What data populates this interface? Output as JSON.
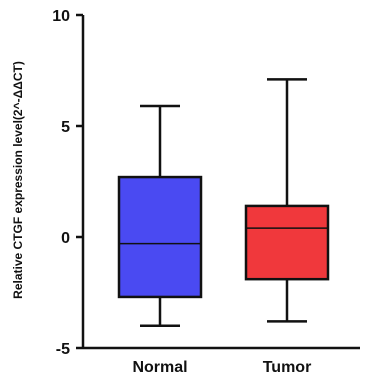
{
  "chart_data": {
    "type": "box",
    "title": "",
    "xlabel": "",
    "ylabel": "Relative CTGF expression level(2^-ΔΔCT)",
    "ylim": [
      -5,
      10
    ],
    "yticks": [
      "10",
      "5",
      "0",
      "-5"
    ],
    "grid": false,
    "categories": [
      "Normal",
      "Tumor"
    ],
    "series": [
      {
        "category": "Normal",
        "color": "#4A4AF2",
        "min": -4.0,
        "q1": -2.7,
        "median": -0.3,
        "q3": 2.7,
        "max": 5.9
      },
      {
        "category": "Tumor",
        "color": "#F0383C",
        "min": -3.8,
        "q1": -1.9,
        "median": 0.4,
        "q3": 1.4,
        "max": 7.1
      }
    ]
  }
}
